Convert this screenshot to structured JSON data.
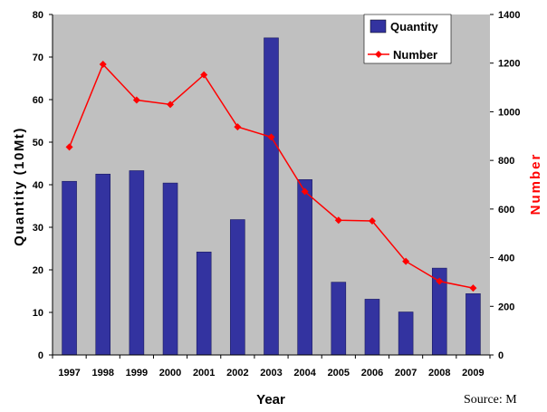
{
  "chart_data": {
    "type": "bar",
    "categories": [
      "1997",
      "1998",
      "1999",
      "2000",
      "2001",
      "2002",
      "2003",
      "2004",
      "2005",
      "2006",
      "2007",
      "2008",
      "2009"
    ],
    "series": [
      {
        "name": "Quantity",
        "type": "bar",
        "axis": "left",
        "color": "#3333a0",
        "values": [
          40.8,
          42.5,
          43.3,
          40.4,
          24.2,
          31.8,
          74.5,
          41.2,
          17.1,
          13.1,
          10.1,
          20.4,
          14.4
        ]
      },
      {
        "name": "Number",
        "type": "line",
        "axis": "right",
        "color": "#ff0000",
        "values": [
          855,
          1195,
          1048,
          1030,
          1152,
          938,
          896,
          672,
          554,
          551,
          385,
          303,
          275
        ]
      }
    ],
    "xlabel": "Year",
    "ylabel": "Quantity (10Mt)",
    "y2label": "Number",
    "ylim": [
      0,
      80
    ],
    "yticks": [
      "0",
      "10",
      "20",
      "30",
      "40",
      "50",
      "60",
      "70",
      "80"
    ],
    "y2lim": [
      0,
      1400
    ],
    "y2ticks": [
      "0",
      "200",
      "400",
      "600",
      "800",
      "1000",
      "1200",
      "1400"
    ],
    "legend_position": "top-right",
    "plot_background": "#c0c0c0",
    "grid": false
  },
  "source_text": "Source: M"
}
